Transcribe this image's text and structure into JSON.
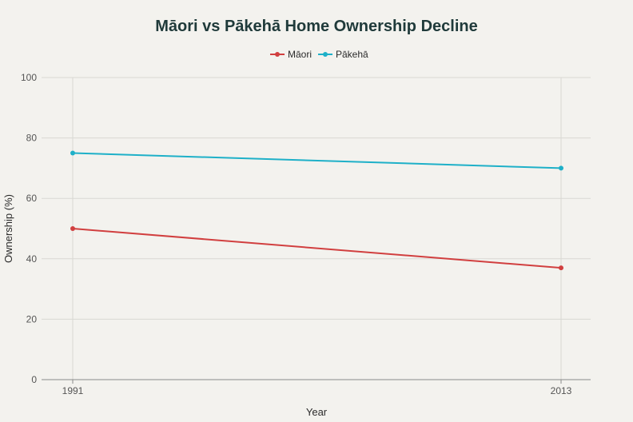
{
  "chart_data": {
    "type": "line",
    "title": "Māori vs Pākehā Home Ownership Decline",
    "xlabel": "Year",
    "ylabel": "Ownership (%)",
    "x": [
      "1991",
      "2013"
    ],
    "ylim": [
      0,
      100
    ],
    "yticks": [
      0,
      20,
      40,
      60,
      80,
      100
    ],
    "grid": true,
    "legend_position": "top-center",
    "series": [
      {
        "name": "Māori",
        "color": "#d13f3f",
        "values": [
          50,
          37
        ]
      },
      {
        "name": "Pākehā",
        "color": "#1eb0c8",
        "values": [
          75,
          70
        ]
      }
    ]
  }
}
